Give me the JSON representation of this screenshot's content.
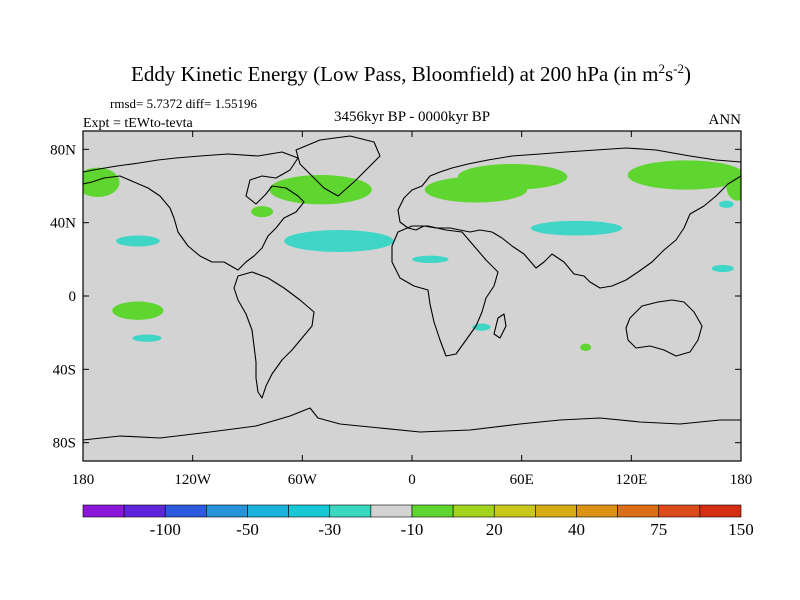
{
  "chart_data": {
    "type": "heatmap",
    "title": {
      "main": "Eddy Kinetic Energy (Low Pass, Bloomfield) at 200 hPa (in m",
      "sup1": "2",
      "mid": "s",
      "sup2": "-2",
      "end": ")"
    },
    "stats": "rmsd= 5.7372 diff= 1.55196",
    "experiment": "Expt = tEWto-tevta",
    "period": "3456kyr BP - 0000kyr BP",
    "season": "ANN",
    "xlim": [
      -180,
      180
    ],
    "ylim": [
      -90,
      90
    ],
    "x_ticks": [
      {
        "value": -180,
        "label": "180"
      },
      {
        "value": -120,
        "label": "120W"
      },
      {
        "value": -60,
        "label": "60W"
      },
      {
        "value": 0,
        "label": "0"
      },
      {
        "value": 60,
        "label": "60E"
      },
      {
        "value": 120,
        "label": "120E"
      },
      {
        "value": 180,
        "label": "180"
      }
    ],
    "y_ticks": [
      {
        "value": 80,
        "label": "80N"
      },
      {
        "value": 40,
        "label": "40N"
      },
      {
        "value": 0,
        "label": "0"
      },
      {
        "value": -40,
        "label": "40S"
      },
      {
        "value": -80,
        "label": "80S"
      }
    ],
    "background_color": "#d3d3d3",
    "anomaly_regions": [
      {
        "name": "north-atlantic-positive",
        "lon": -50,
        "lat": 58,
        "dlon": 28,
        "dlat": 8,
        "color": "#5fd62f"
      },
      {
        "name": "alaska-positive",
        "lon": -172,
        "lat": 62,
        "dlon": 12,
        "dlat": 8,
        "color": "#5fd62f"
      },
      {
        "name": "hudson-positive",
        "lon": -82,
        "lat": 46,
        "dlon": 6,
        "dlat": 3,
        "color": "#5fd62f"
      },
      {
        "name": "siberia-positive",
        "lon": 55,
        "lat": 65,
        "dlon": 30,
        "dlat": 7,
        "color": "#5fd62f"
      },
      {
        "name": "europe-positive",
        "lon": 35,
        "lat": 58,
        "dlon": 28,
        "dlat": 7,
        "color": "#5fd62f"
      },
      {
        "name": "east-siberia-positive",
        "lon": 150,
        "lat": 66,
        "dlon": 32,
        "dlat": 8,
        "color": "#5fd62f"
      },
      {
        "name": "bering-positive",
        "lon": 178,
        "lat": 60,
        "dlon": 6,
        "dlat": 8,
        "color": "#5fd62f"
      },
      {
        "name": "tropical-pacific-positive",
        "lon": -150,
        "lat": -8,
        "dlon": 14,
        "dlat": 5,
        "color": "#5fd62f"
      },
      {
        "name": "southern-ocean-positive",
        "lon": 95,
        "lat": -28,
        "dlon": 3,
        "dlat": 2,
        "color": "#5fd62f"
      },
      {
        "name": "central-atlantic-negative",
        "lon": -40,
        "lat": 30,
        "dlon": 30,
        "dlat": 6,
        "color": "#3fd6c8"
      },
      {
        "name": "central-pacific-negative",
        "lon": -150,
        "lat": 30,
        "dlon": 12,
        "dlat": 3,
        "color": "#3fd6c8"
      },
      {
        "name": "central-asia-negative",
        "lon": 90,
        "lat": 37,
        "dlon": 25,
        "dlat": 4,
        "color": "#3fd6c8"
      },
      {
        "name": "north-africa-negative",
        "lon": 10,
        "lat": 20,
        "dlon": 10,
        "dlat": 2,
        "color": "#3fd6c8"
      },
      {
        "name": "subtropical-pacific-negative",
        "lon": -145,
        "lat": -23,
        "dlon": 8,
        "dlat": 2,
        "color": "#3fd6c8"
      },
      {
        "name": "west-pacific-negative",
        "lon": 170,
        "lat": 15,
        "dlon": 6,
        "dlat": 2,
        "color": "#3fd6c8"
      },
      {
        "name": "mozambique-negative",
        "lon": 38,
        "lat": -17,
        "dlon": 5,
        "dlat": 2,
        "color": "#3fd6c8"
      },
      {
        "name": "sea-of-okhotsk-negative",
        "lon": 172,
        "lat": 50,
        "dlon": 4,
        "dlat": 2,
        "color": "#3fd6c8"
      }
    ],
    "colorbar": {
      "colors": [
        "#8a17d9",
        "#5e25dd",
        "#2d5ade",
        "#2592d9",
        "#1ab2db",
        "#16c8d6",
        "#38d9c0",
        "#d3d3d3",
        "#5fd62f",
        "#a2d41e",
        "#c9c81a",
        "#d6ad13",
        "#dc9215",
        "#dc6f15",
        "#db4b1b",
        "#d42f12"
      ],
      "labels": [
        "-100",
        "-50",
        "-30",
        "-10",
        "20",
        "40",
        "75",
        "150"
      ]
    }
  }
}
